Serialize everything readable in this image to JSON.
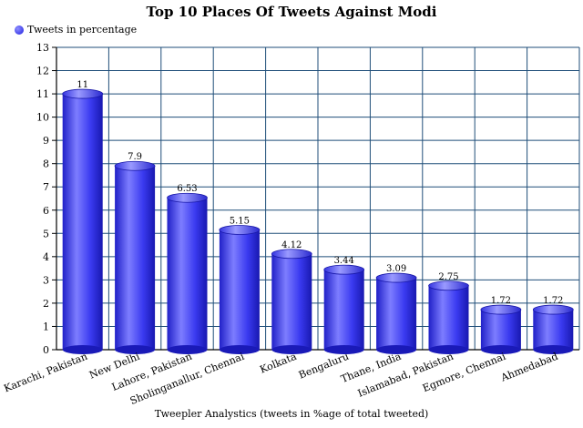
{
  "chart_data": {
    "type": "bar",
    "title": "Top 10 Places Of Tweets Against Modi",
    "xlabel": "Tweepler Analystics (tweets in %age of total tweeted)",
    "ylabel": "",
    "ylim": [
      0,
      13
    ],
    "yticks": [
      "0",
      "1",
      "2",
      "3",
      "4",
      "5",
      "6",
      "7",
      "8",
      "9",
      "10",
      "11",
      "12",
      "13"
    ],
    "grid": true,
    "legend_position": "top-left",
    "categories": [
      "Karachi, Pakistan",
      "New Delhi",
      "Lahore, Pakistan",
      "Sholinganallur, Chennai",
      "Kolkata",
      "Bengaluru",
      "Thane, India",
      "Islamabad, Pakistan",
      "Egmore, Chennai",
      "Ahmedabad"
    ],
    "series": [
      {
        "name": "Tweets in percentage",
        "values": [
          11,
          7.9,
          6.53,
          5.15,
          4.12,
          3.44,
          3.09,
          2.75,
          1.72,
          1.72
        ],
        "labels": [
          "11",
          "7.9",
          "6.53",
          "5.15",
          "4.12",
          "3.44",
          "3.09",
          "2.75",
          "1.72",
          "1.72"
        ],
        "color": "#2b2bdc"
      }
    ]
  },
  "colors": {
    "bar_dark": "#1a1ab8",
    "bar_light": "#8a8aff",
    "grid": "#1f4e79",
    "axis": "#000000"
  }
}
